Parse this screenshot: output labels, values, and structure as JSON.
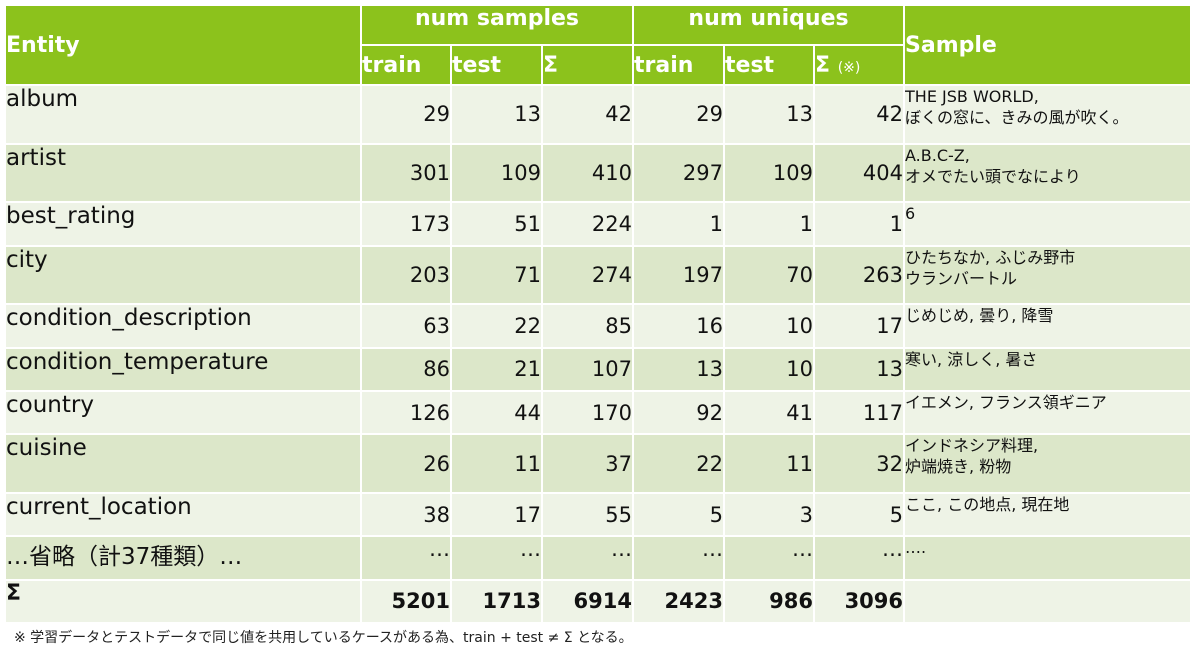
{
  "header": {
    "entity": "Entity",
    "num_samples": "num samples",
    "num_uniques": "num uniques",
    "sample": "Sample",
    "train": "train",
    "test": "test",
    "sigma": "Σ",
    "sigma_mark": "(※)"
  },
  "rows": [
    {
      "entity": "album",
      "s_train": "29",
      "s_test": "13",
      "s_sum": "42",
      "u_train": "29",
      "u_test": "13",
      "u_sum": "42",
      "sample": [
        "THE JSB WORLD,",
        "ぼくの窓に、きみの風が吹く。"
      ]
    },
    {
      "entity": "artist",
      "s_train": "301",
      "s_test": "109",
      "s_sum": "410",
      "u_train": "297",
      "u_test": "109",
      "u_sum": "404",
      "sample": [
        "A.B.C-Z,",
        "オメでたい頭でなにより"
      ]
    },
    {
      "entity": "best_rating",
      "s_train": "173",
      "s_test": "51",
      "s_sum": "224",
      "u_train": "1",
      "u_test": "1",
      "u_sum": "1",
      "sample": [
        "6",
        ""
      ]
    },
    {
      "entity": "city",
      "s_train": "203",
      "s_test": "71",
      "s_sum": "274",
      "u_train": "197",
      "u_test": "70",
      "u_sum": "263",
      "sample": [
        "ひたちなか, ふじみ野市",
        "ウランバートル"
      ]
    },
    {
      "entity": "condition_description",
      "s_train": "63",
      "s_test": "22",
      "s_sum": "85",
      "u_train": "16",
      "u_test": "10",
      "u_sum": "17",
      "sample": [
        "じめじめ, 曇り, 降雪",
        ""
      ]
    },
    {
      "entity": "condition_temperature",
      "s_train": "86",
      "s_test": "21",
      "s_sum": "107",
      "u_train": "13",
      "u_test": "10",
      "u_sum": "13",
      "sample": [
        "寒い, 涼しく, 暑さ",
        ""
      ]
    },
    {
      "entity": "country",
      "s_train": "126",
      "s_test": "44",
      "s_sum": "170",
      "u_train": "92",
      "u_test": "41",
      "u_sum": "117",
      "sample": [
        "イエメン, フランス領ギニア",
        ""
      ]
    },
    {
      "entity": "cuisine",
      "s_train": "26",
      "s_test": "11",
      "s_sum": "37",
      "u_train": "22",
      "u_test": "11",
      "u_sum": "32",
      "sample": [
        "インドネシア料理,",
        "炉端焼き, 粉物"
      ]
    },
    {
      "entity": "current_location",
      "s_train": "38",
      "s_test": "17",
      "s_sum": "55",
      "u_train": "5",
      "u_test": "3",
      "u_sum": "5",
      "sample": [
        "ここ, この地点, 現在地",
        ""
      ]
    },
    {
      "entity": "…省略（計37種類）…",
      "s_train": "…",
      "s_test": "…",
      "s_sum": "…",
      "u_train": "…",
      "u_test": "…",
      "u_sum": "…",
      "sample": [
        "….",
        ""
      ]
    }
  ],
  "total": {
    "label": "Σ",
    "s_train": "5201",
    "s_test": "1713",
    "s_sum": "6914",
    "u_train": "2423",
    "u_test": "986",
    "u_sum": "3096"
  },
  "footnote": "※ 学習データとテストデータで同じ値を共用しているケースがある為、train + test ≠ Σ となる。",
  "colors": {
    "header": "#8cc21c",
    "row_light": "#eef3e6",
    "row_dark": "#dce7c9"
  }
}
